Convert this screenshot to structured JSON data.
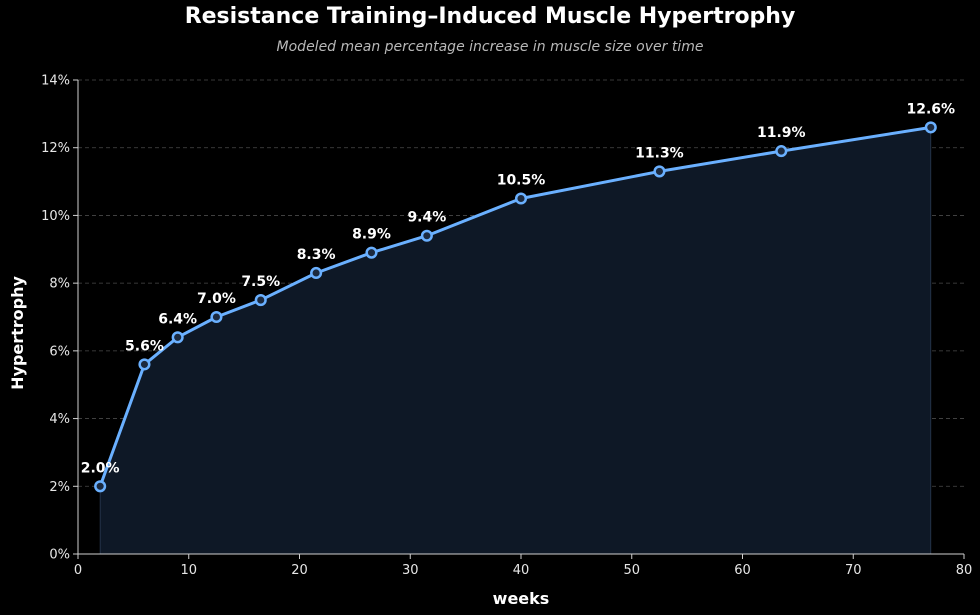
{
  "chart_data": {
    "type": "line",
    "title": "Resistance Training–Induced Muscle Hypertrophy",
    "subtitle": "Modeled mean percentage increase in muscle size over time",
    "xlabel": "weeks",
    "ylabel": "Hypertrophy",
    "xlim": [
      0,
      80
    ],
    "ylim": [
      0,
      14
    ],
    "x_ticks": [
      0,
      10,
      20,
      30,
      40,
      50,
      60,
      70,
      80
    ],
    "y_ticks": [
      0,
      2,
      4,
      6,
      8,
      10,
      12,
      14
    ],
    "y_tick_suffix": "%",
    "grid": "horizontal dashed",
    "area_fill": true,
    "series": [
      {
        "x": [
          2,
          6,
          9,
          12.5,
          16.5,
          21.5,
          26.5,
          31.5,
          40,
          52.5,
          63.5,
          77
        ],
        "values": [
          2.0,
          5.6,
          6.4,
          7.0,
          7.5,
          8.3,
          8.9,
          9.4,
          10.5,
          11.3,
          11.9,
          12.6
        ],
        "labels": [
          "2.0%",
          "5.6%",
          "6.4%",
          "7.0%",
          "7.5%",
          "8.3%",
          "8.9%",
          "9.4%",
          "10.5%",
          "11.3%",
          "11.9%",
          "12.6%"
        ]
      }
    ]
  },
  "colors": {
    "background": "#000000",
    "line": "#6ab0ff",
    "marker_fill": "#1c2a3f",
    "area_fill": "#0e1826",
    "grid": "#4a4a4a",
    "axis": "#d0d0d0"
  }
}
